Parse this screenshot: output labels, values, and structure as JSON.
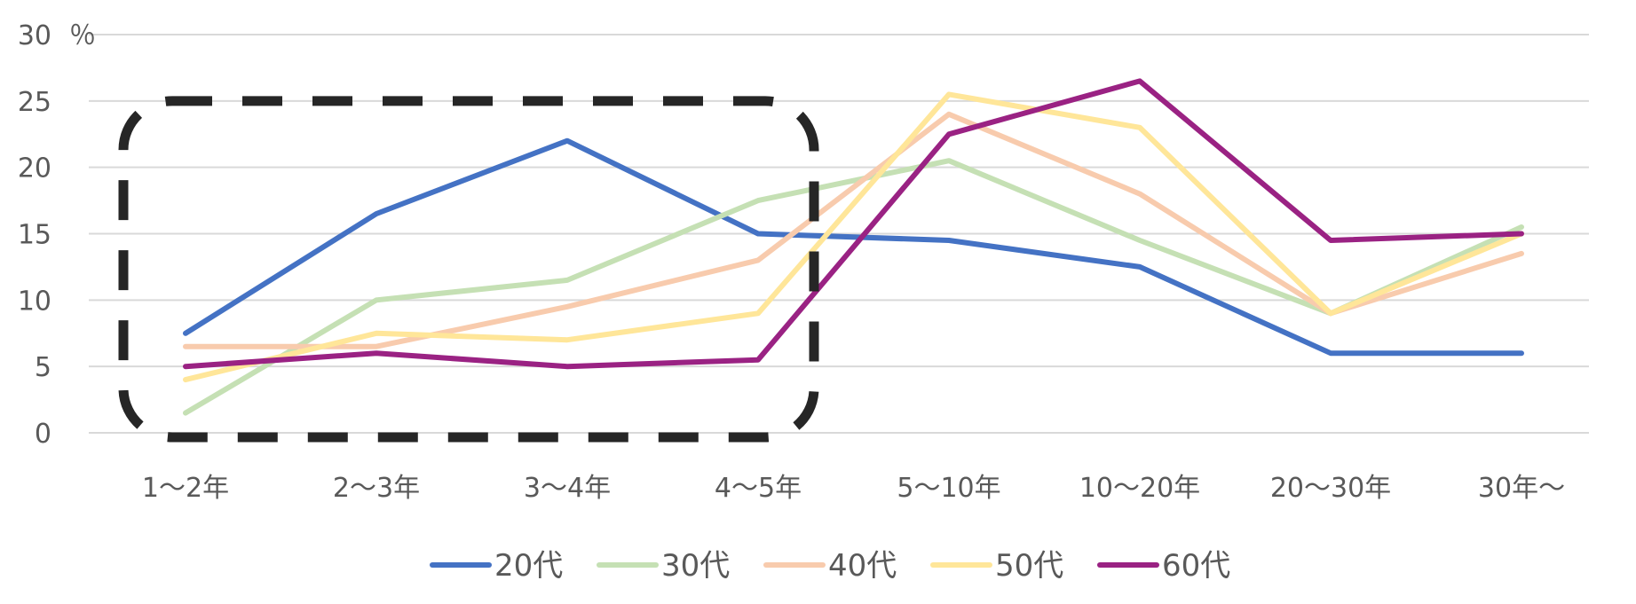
{
  "chart_data": {
    "type": "line",
    "unit_label": "％",
    "categories": [
      "1〜2年",
      "2〜3年",
      "3〜4年",
      "4〜5年",
      "5〜10年",
      "10〜20年",
      "20〜30年",
      "30年〜"
    ],
    "yticks": [
      "0",
      "5",
      "10",
      "15",
      "20",
      "25",
      "30"
    ],
    "ylim": [
      0,
      30
    ],
    "grid": true,
    "legend_position": "bottom",
    "series": [
      {
        "name": "20代",
        "color": "#4472C4",
        "values": [
          7.5,
          16.5,
          22,
          15,
          14.5,
          12.5,
          6,
          6
        ]
      },
      {
        "name": "30代",
        "color": "#C5E0B4",
        "values": [
          1.5,
          10,
          11.5,
          17.5,
          20.5,
          14.5,
          9,
          15.5
        ]
      },
      {
        "name": "40代",
        "color": "#F8CBAD",
        "values": [
          6.5,
          6.5,
          9.5,
          13,
          24,
          18,
          9,
          13.5
        ]
      },
      {
        "name": "50代",
        "color": "#FFE699",
        "values": [
          4,
          7.5,
          7,
          9,
          25.5,
          23,
          9,
          15
        ]
      },
      {
        "name": "60代",
        "color": "#9A2283",
        "values": [
          5,
          6,
          5,
          5.5,
          22.5,
          26.5,
          14.5,
          15
        ]
      }
    ],
    "annotation": {
      "type": "dashed-rounded-rectangle",
      "color": "#262626",
      "covers_categories": [
        "1〜2年",
        "2〜3年",
        "3〜4年",
        "4〜5年"
      ]
    }
  }
}
